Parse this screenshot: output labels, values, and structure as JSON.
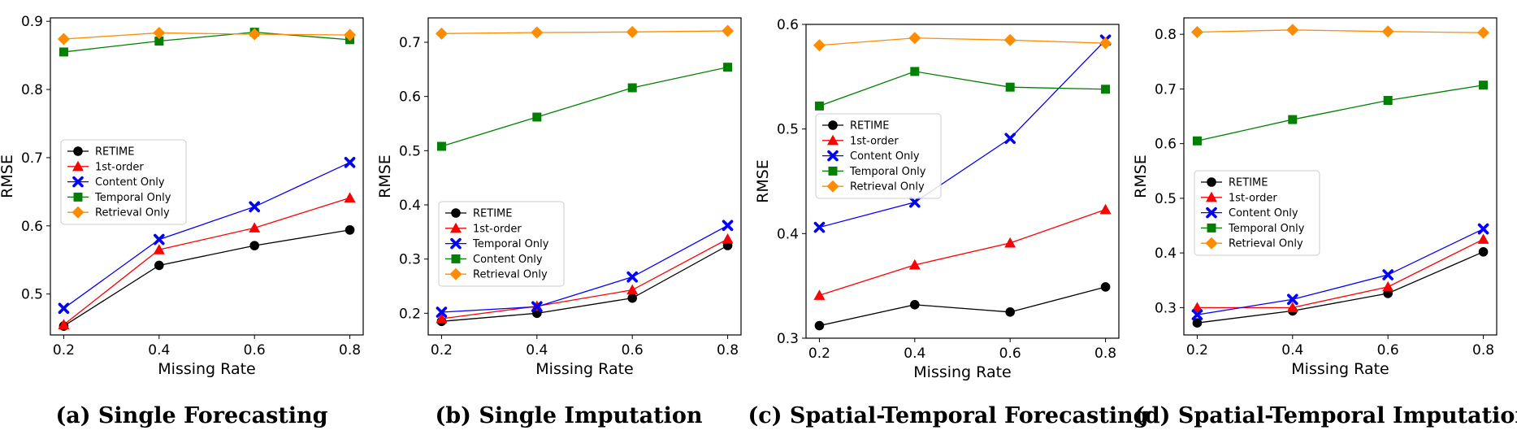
{
  "chart_data": [
    {
      "type": "line",
      "caption": "(a) Single Forecasting",
      "xlabel": "Missing Rate",
      "ylabel": "RMSE",
      "x": [
        0.2,
        0.4,
        0.6,
        0.8
      ],
      "xticks": [
        "0.2",
        "0.4",
        "0.6",
        "0.8"
      ],
      "yticks": [
        0.5,
        0.6,
        0.7,
        0.8,
        0.9
      ],
      "ytick_labels": [
        "0.5",
        "0.6",
        "0.7",
        "0.8",
        "0.9"
      ],
      "ylim": [
        0.44,
        0.905
      ],
      "legend_position": "center-left",
      "series": [
        {
          "name": "RETIME",
          "color": "#000000",
          "marker": "circle",
          "values": [
            0.453,
            0.542,
            0.571,
            0.594
          ]
        },
        {
          "name": "1st-order",
          "color": "#ff0000",
          "marker": "triangle",
          "values": [
            0.455,
            0.565,
            0.597,
            0.641
          ]
        },
        {
          "name": "Content Only",
          "color": "#0000ff",
          "marker": "x",
          "values": [
            0.479,
            0.58,
            0.628,
            0.693
          ]
        },
        {
          "name": "Temporal Only",
          "color": "#008000",
          "marker": "square",
          "values": [
            0.855,
            0.871,
            0.884,
            0.873
          ]
        },
        {
          "name": "Retrieval Only",
          "color": "#ff8c00",
          "marker": "diamond",
          "values": [
            0.874,
            0.883,
            0.881,
            0.88
          ]
        }
      ]
    },
    {
      "type": "line",
      "caption": "(b) Single Imputation",
      "xlabel": "Missing Rate",
      "ylabel": "RMSE",
      "x": [
        0.2,
        0.4,
        0.6,
        0.8
      ],
      "xticks": [
        "0.2",
        "0.4",
        "0.6",
        "0.8"
      ],
      "yticks": [
        0.2,
        0.3,
        0.4,
        0.5,
        0.6,
        0.7
      ],
      "ytick_labels": [
        "0.2",
        "0.3",
        "0.4",
        "0.5",
        "0.6",
        "0.7"
      ],
      "ylim": [
        0.16,
        0.745
      ],
      "legend_position": "lower-left",
      "series": [
        {
          "name": "RETIME",
          "color": "#000000",
          "marker": "circle",
          "values": [
            0.185,
            0.2,
            0.228,
            0.325
          ]
        },
        {
          "name": "1st-order",
          "color": "#ff0000",
          "marker": "triangle",
          "values": [
            0.19,
            0.213,
            0.243,
            0.337
          ]
        },
        {
          "name": "Temporal Only",
          "color": "#0000ff",
          "marker": "x",
          "values": [
            0.202,
            0.212,
            0.267,
            0.362
          ]
        },
        {
          "name": "Content Only",
          "color": "#008000",
          "marker": "square",
          "values": [
            0.508,
            0.562,
            0.616,
            0.654
          ]
        },
        {
          "name": "Retrieval Only",
          "color": "#ff8c00",
          "marker": "diamond",
          "values": [
            0.716,
            0.718,
            0.719,
            0.721
          ]
        }
      ]
    },
    {
      "type": "line",
      "caption": "(c) Spatial-Temporal Forecasting",
      "xlabel": "Missing Rate",
      "ylabel": "RMSE",
      "x": [
        0.2,
        0.4,
        0.6,
        0.8
      ],
      "xticks": [
        "0.2",
        "0.4",
        "0.6",
        "0.8"
      ],
      "yticks": [
        0.3,
        0.4,
        0.5,
        0.6
      ],
      "ytick_labels": [
        "0.3",
        "0.4",
        "0.5",
        "0.6"
      ],
      "ylim": [
        0.3,
        0.6
      ],
      "legend_position": "upper-left",
      "series": [
        {
          "name": "RETIME",
          "color": "#000000",
          "marker": "circle",
          "values": [
            0.312,
            0.332,
            0.325,
            0.349
          ]
        },
        {
          "name": "1st-order",
          "color": "#ff0000",
          "marker": "triangle",
          "values": [
            0.341,
            0.37,
            0.391,
            0.423
          ]
        },
        {
          "name": "Content Only",
          "color": "#0000ff",
          "marker": "x",
          "values": [
            0.406,
            0.43,
            0.491,
            0.585
          ]
        },
        {
          "name": "Temporal Only",
          "color": "#008000",
          "marker": "square",
          "values": [
            0.522,
            0.555,
            0.54,
            0.538
          ]
        },
        {
          "name": "Retrieval Only",
          "color": "#ff8c00",
          "marker": "diamond",
          "values": [
            0.58,
            0.587,
            0.585,
            0.582
          ]
        }
      ]
    },
    {
      "type": "line",
      "caption": "(d) Spatial-Temporal Imputation",
      "xlabel": "Missing Rate",
      "ylabel": "RMSE",
      "x": [
        0.2,
        0.4,
        0.6,
        0.8
      ],
      "xticks": [
        "0.2",
        "0.4",
        "0.6",
        "0.8"
      ],
      "yticks": [
        0.3,
        0.4,
        0.5,
        0.6,
        0.7,
        0.8
      ],
      "ytick_labels": [
        "0.3",
        "0.4",
        "0.5",
        "0.6",
        "0.7",
        "0.8"
      ],
      "ylim": [
        0.25,
        0.83
      ],
      "legend_position": "center-left",
      "series": [
        {
          "name": "RETIME",
          "color": "#000000",
          "marker": "circle",
          "values": [
            0.272,
            0.294,
            0.326,
            0.402
          ]
        },
        {
          "name": "1st-order",
          "color": "#ff0000",
          "marker": "triangle",
          "values": [
            0.3,
            0.3,
            0.338,
            0.425
          ]
        },
        {
          "name": "Content Only",
          "color": "#0000ff",
          "marker": "x",
          "values": [
            0.287,
            0.315,
            0.36,
            0.444
          ]
        },
        {
          "name": "Temporal Only",
          "color": "#008000",
          "marker": "square",
          "values": [
            0.605,
            0.644,
            0.679,
            0.707
          ]
        },
        {
          "name": "Retrieval Only",
          "color": "#ff8c00",
          "marker": "diamond",
          "values": [
            0.804,
            0.808,
            0.805,
            0.803
          ]
        }
      ]
    }
  ]
}
